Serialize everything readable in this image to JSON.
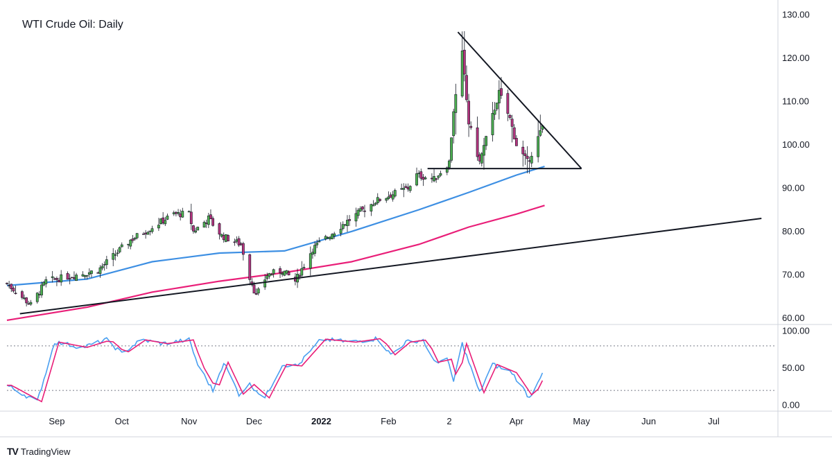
{
  "chart_data": {
    "title": "WTI Crude Oil: Daily",
    "type": "candlestick",
    "x_labels": [
      {
        "label": "Sep",
        "date": "2021-09-01"
      },
      {
        "label": "Oct",
        "date": "2021-10-01"
      },
      {
        "label": "Nov",
        "date": "2021-11-01"
      },
      {
        "label": "Dec",
        "date": "2021-12-01"
      },
      {
        "label": "2022",
        "date": "2022-01-01"
      },
      {
        "label": "Feb",
        "date": "2022-02-01"
      },
      {
        "label": "2",
        "date": "2022-03-01"
      },
      {
        "label": "Apr",
        "date": "2022-04-01"
      },
      {
        "label": "May",
        "date": "2022-05-01"
      },
      {
        "label": "Jun",
        "date": "2022-06-01"
      },
      {
        "label": "Jul",
        "date": "2022-07-01"
      }
    ],
    "price_axis": {
      "ticks": [
        "130.00",
        "120.00",
        "110.00",
        "100.00",
        "90.00",
        "80.00",
        "70.00",
        "60.00"
      ],
      "range": [
        59,
        131
      ]
    },
    "oscillator_axis": {
      "ticks": [
        "100.00",
        "50.00",
        "0.00"
      ],
      "range": [
        -5,
        105
      ],
      "levels": [
        80,
        20
      ]
    },
    "price_path": [
      [
        "2021-08-09",
        68
      ],
      [
        "2021-08-20",
        63
      ],
      [
        "2021-08-27",
        68.5
      ],
      [
        "2021-09-20",
        71
      ],
      [
        "2021-10-05",
        78
      ],
      [
        "2021-10-25",
        84
      ],
      [
        "2021-11-01",
        84
      ],
      [
        "2021-11-03",
        80
      ],
      [
        "2021-11-10",
        83
      ],
      [
        "2021-11-16",
        79
      ],
      [
        "2021-11-25",
        77
      ],
      [
        "2021-11-29",
        69.5
      ],
      [
        "2021-12-02",
        65
      ],
      [
        "2021-12-07",
        70
      ],
      [
        "2021-12-14",
        71
      ],
      [
        "2021-12-20",
        68.5
      ],
      [
        "2021-12-28",
        76
      ],
      [
        "2022-01-12",
        82
      ],
      [
        "2022-01-26",
        87
      ],
      [
        "2022-02-10",
        90
      ],
      [
        "2022-02-14",
        93
      ],
      [
        "2022-02-22",
        92
      ],
      [
        "2022-03-01",
        96
      ],
      [
        "2022-03-03",
        108
      ],
      [
        "2022-03-07",
        121
      ],
      [
        "2022-03-10",
        105
      ],
      [
        "2022-03-15",
        96
      ],
      [
        "2022-03-24",
        112
      ],
      [
        "2022-03-29",
        106
      ],
      [
        "2022-04-01",
        100
      ],
      [
        "2022-04-06",
        96
      ],
      [
        "2022-04-08",
        98
      ],
      [
        "2022-04-13",
        104
      ]
    ],
    "oscillator_path": [
      [
        "2021-08-09",
        27
      ],
      [
        "2021-08-23",
        5
      ],
      [
        "2021-08-31",
        85
      ],
      [
        "2021-09-13",
        78
      ],
      [
        "2021-09-24",
        88
      ],
      [
        "2021-10-01",
        70
      ],
      [
        "2021-10-10",
        88
      ],
      [
        "2021-10-20",
        83
      ],
      [
        "2021-11-01",
        88
      ],
      [
        "2021-11-05",
        55
      ],
      [
        "2021-11-12",
        20
      ],
      [
        "2021-11-17",
        58
      ],
      [
        "2021-11-24",
        15
      ],
      [
        "2021-11-29",
        28
      ],
      [
        "2021-12-06",
        10
      ],
      [
        "2021-12-14",
        55
      ],
      [
        "2021-12-21",
        53
      ],
      [
        "2022-01-01",
        89
      ],
      [
        "2022-01-15",
        85
      ],
      [
        "2022-01-27",
        90
      ],
      [
        "2022-02-02",
        68
      ],
      [
        "2022-02-09",
        85
      ],
      [
        "2022-02-17",
        88
      ],
      [
        "2022-02-22",
        58
      ],
      [
        "2022-02-28",
        62
      ],
      [
        "2022-03-03",
        32
      ],
      [
        "2022-03-07",
        83
      ],
      [
        "2022-03-15",
        17
      ],
      [
        "2022-03-21",
        55
      ],
      [
        "2022-03-30",
        44
      ],
      [
        "2022-04-07",
        10
      ],
      [
        "2022-04-13",
        45
      ]
    ],
    "series": [
      {
        "type": "moving-average",
        "color": "#3d8fe3",
        "points": [
          [
            "2021-08-09",
            67.5
          ],
          [
            "2021-09-15",
            69
          ],
          [
            "2021-10-15",
            73
          ],
          [
            "2021-11-15",
            75
          ],
          [
            "2021-12-15",
            75.5
          ],
          [
            "2022-01-15",
            80
          ],
          [
            "2022-02-15",
            85
          ],
          [
            "2022-03-10",
            89
          ],
          [
            "2022-04-01",
            93
          ],
          [
            "2022-04-14",
            95
          ]
        ]
      },
      {
        "type": "moving-average",
        "color": "#e91e78",
        "points": [
          [
            "2021-08-09",
            59.5
          ],
          [
            "2021-09-15",
            62.5
          ],
          [
            "2021-10-15",
            66
          ],
          [
            "2021-11-15",
            68.5
          ],
          [
            "2021-12-15",
            70.5
          ],
          [
            "2022-01-15",
            73
          ],
          [
            "2022-02-15",
            77
          ],
          [
            "2022-03-10",
            81
          ],
          [
            "2022-04-01",
            84
          ],
          [
            "2022-04-14",
            86
          ]
        ]
      }
    ],
    "trendlines": [
      {
        "color": "#131722",
        "from": [
          "2021-08-15",
          61
        ],
        "to": [
          "2022-07-23",
          83
        ]
      },
      {
        "color": "#131722",
        "from": [
          "2022-03-05",
          126
        ],
        "to": [
          "2022-05-01",
          94.5
        ]
      },
      {
        "color": "#131722",
        "from": [
          "2022-02-19",
          94.5
        ],
        "to": [
          "2022-05-01",
          94.5
        ]
      }
    ],
    "colors": {
      "up": "#4caf50",
      "down": "#b5347f",
      "k_line": "#4a9ff0",
      "d_line": "#e91e78",
      "trend": "#131722"
    },
    "grid": false,
    "legend": "none"
  },
  "brand": {
    "name": "TradingView",
    "logo": "TV"
  }
}
